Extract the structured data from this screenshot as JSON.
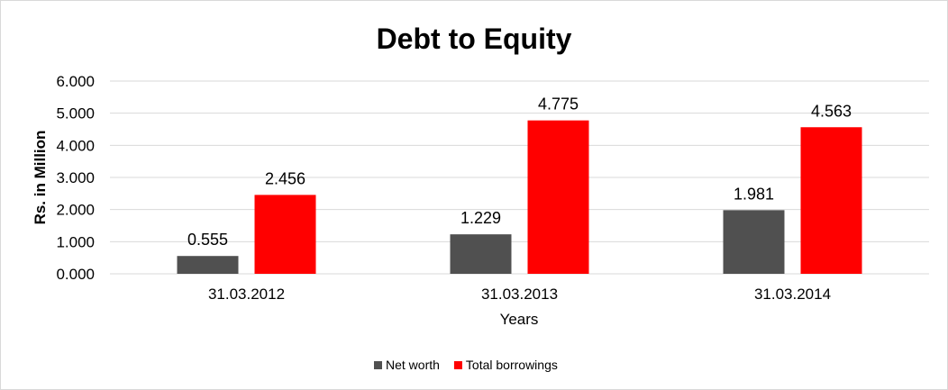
{
  "chart_data": {
    "type": "bar",
    "title": "Debt to Equity",
    "xlabel": "Years",
    "ylabel": "Rs. in Million",
    "categories": [
      "31.03.2012",
      "31.03.2013",
      "31.03.2014"
    ],
    "series": [
      {
        "name": "Net worth",
        "values": [
          0.555,
          1.229,
          1.981
        ],
        "labels": [
          "0.555",
          "1.229",
          "1.981"
        ],
        "color": "#505050"
      },
      {
        "name": "Total borrowings",
        "values": [
          2.456,
          4.775,
          4.563
        ],
        "labels": [
          "2.456",
          "4.775",
          "4.563"
        ],
        "color": "#ff0000"
      }
    ],
    "ylim": [
      0,
      6
    ],
    "yticks": [
      "0.000",
      "1.000",
      "2.000",
      "3.000",
      "4.000",
      "5.000",
      "6.000"
    ],
    "grid": true,
    "legend_position": "bottom"
  }
}
